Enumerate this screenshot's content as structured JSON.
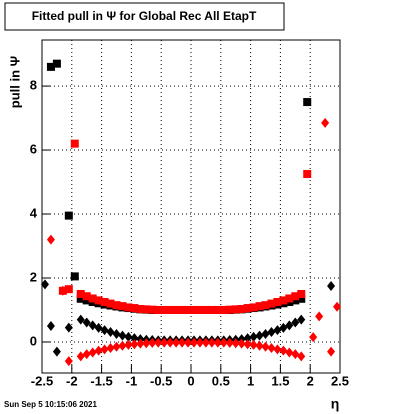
{
  "chart_data": {
    "type": "scatter",
    "title": "Fitted pull in Ψ for Global Rec All EtapT",
    "y_label": "pull in Ψ",
    "x_label": "η",
    "footer": "Sun Sep  5 10:15:06 2021",
    "x": [
      -2.45,
      -2.35,
      -2.25,
      -2.15,
      -2.05,
      -1.95,
      -1.85,
      -1.75,
      -1.65,
      -1.55,
      -1.45,
      -1.35,
      -1.25,
      -1.15,
      -1.05,
      -0.95,
      -0.85,
      -0.75,
      -0.65,
      -0.55,
      -0.45,
      -0.35,
      -0.25,
      -0.15,
      -0.05,
      0.05,
      0.15,
      0.25,
      0.35,
      0.45,
      0.55,
      0.65,
      0.75,
      0.85,
      0.95,
      1.05,
      1.15,
      1.25,
      1.35,
      1.45,
      1.55,
      1.65,
      1.75,
      1.85,
      1.95,
      2.05,
      2.15,
      2.25,
      2.35,
      2.45
    ],
    "series": [
      {
        "color": "#000000",
        "marker": "square",
        "values": [
          null,
          8.6,
          8.7,
          null,
          3.95,
          2.05,
          1.35,
          1.3,
          1.25,
          1.21,
          1.17,
          1.14,
          1.11,
          1.08,
          1.06,
          1.04,
          1.02,
          1.01,
          1.0,
          1.0,
          1.0,
          1.0,
          1.0,
          1.0,
          1.0,
          1.0,
          1.0,
          1.0,
          1.0,
          1.0,
          1.0,
          1.0,
          1.01,
          1.02,
          1.04,
          1.06,
          1.08,
          1.11,
          1.14,
          1.17,
          1.21,
          1.25,
          1.3,
          1.35,
          7.5,
          null,
          null,
          null,
          null,
          null
        ]
      },
      {
        "color": "#ff0000",
        "marker": "square",
        "values": [
          null,
          null,
          null,
          1.6,
          1.65,
          6.2,
          1.5,
          1.43,
          1.36,
          1.3,
          1.25,
          1.2,
          1.15,
          1.12,
          1.08,
          1.06,
          1.03,
          1.02,
          1.01,
          1.0,
          1.0,
          1.0,
          1.0,
          1.0,
          1.0,
          1.0,
          1.0,
          1.0,
          1.0,
          1.0,
          1.0,
          1.01,
          1.02,
          1.03,
          1.06,
          1.08,
          1.12,
          1.15,
          1.2,
          1.25,
          1.3,
          1.36,
          1.43,
          1.5,
          5.25,
          null,
          null,
          null,
          null,
          null
        ]
      },
      {
        "color": "#000000",
        "marker": "diamond",
        "values": [
          1.8,
          0.5,
          -0.3,
          null,
          0.45,
          null,
          0.7,
          0.61,
          0.52,
          0.44,
          0.37,
          0.31,
          0.25,
          0.2,
          0.16,
          0.12,
          0.09,
          0.07,
          0.06,
          0.05,
          0.05,
          0.05,
          0.05,
          0.05,
          0.05,
          0.05,
          0.05,
          0.05,
          0.05,
          0.05,
          0.05,
          0.06,
          0.07,
          0.09,
          0.12,
          0.16,
          0.2,
          0.25,
          0.31,
          0.37,
          0.44,
          0.52,
          0.61,
          0.7,
          null,
          null,
          null,
          null,
          1.75,
          null
        ]
      },
      {
        "color": "#ff0000",
        "marker": "diamond",
        "values": [
          null,
          3.2,
          null,
          1.6,
          -0.6,
          null,
          -0.45,
          -0.38,
          -0.33,
          -0.27,
          -0.23,
          -0.19,
          -0.15,
          -0.12,
          -0.09,
          -0.07,
          -0.05,
          -0.04,
          -0.03,
          -0.02,
          -0.02,
          -0.02,
          -0.02,
          -0.02,
          -0.02,
          -0.02,
          -0.02,
          -0.02,
          -0.02,
          -0.02,
          -0.02,
          -0.03,
          -0.04,
          -0.05,
          -0.07,
          -0.09,
          -0.12,
          -0.15,
          -0.19,
          -0.23,
          -0.27,
          -0.33,
          -0.38,
          -0.45,
          null,
          0.15,
          0.8,
          6.85,
          -0.3,
          1.1
        ]
      }
    ],
    "xlim": [
      -2.5,
      2.5
    ],
    "xticks": [
      -2.5,
      -2,
      -1.5,
      -1,
      -0.5,
      0,
      0.5,
      1,
      1.5,
      2,
      2.5
    ],
    "ylim": [
      -0.97,
      9.44
    ],
    "yticks": [
      0,
      2,
      4,
      6,
      8
    ],
    "grid": true
  }
}
